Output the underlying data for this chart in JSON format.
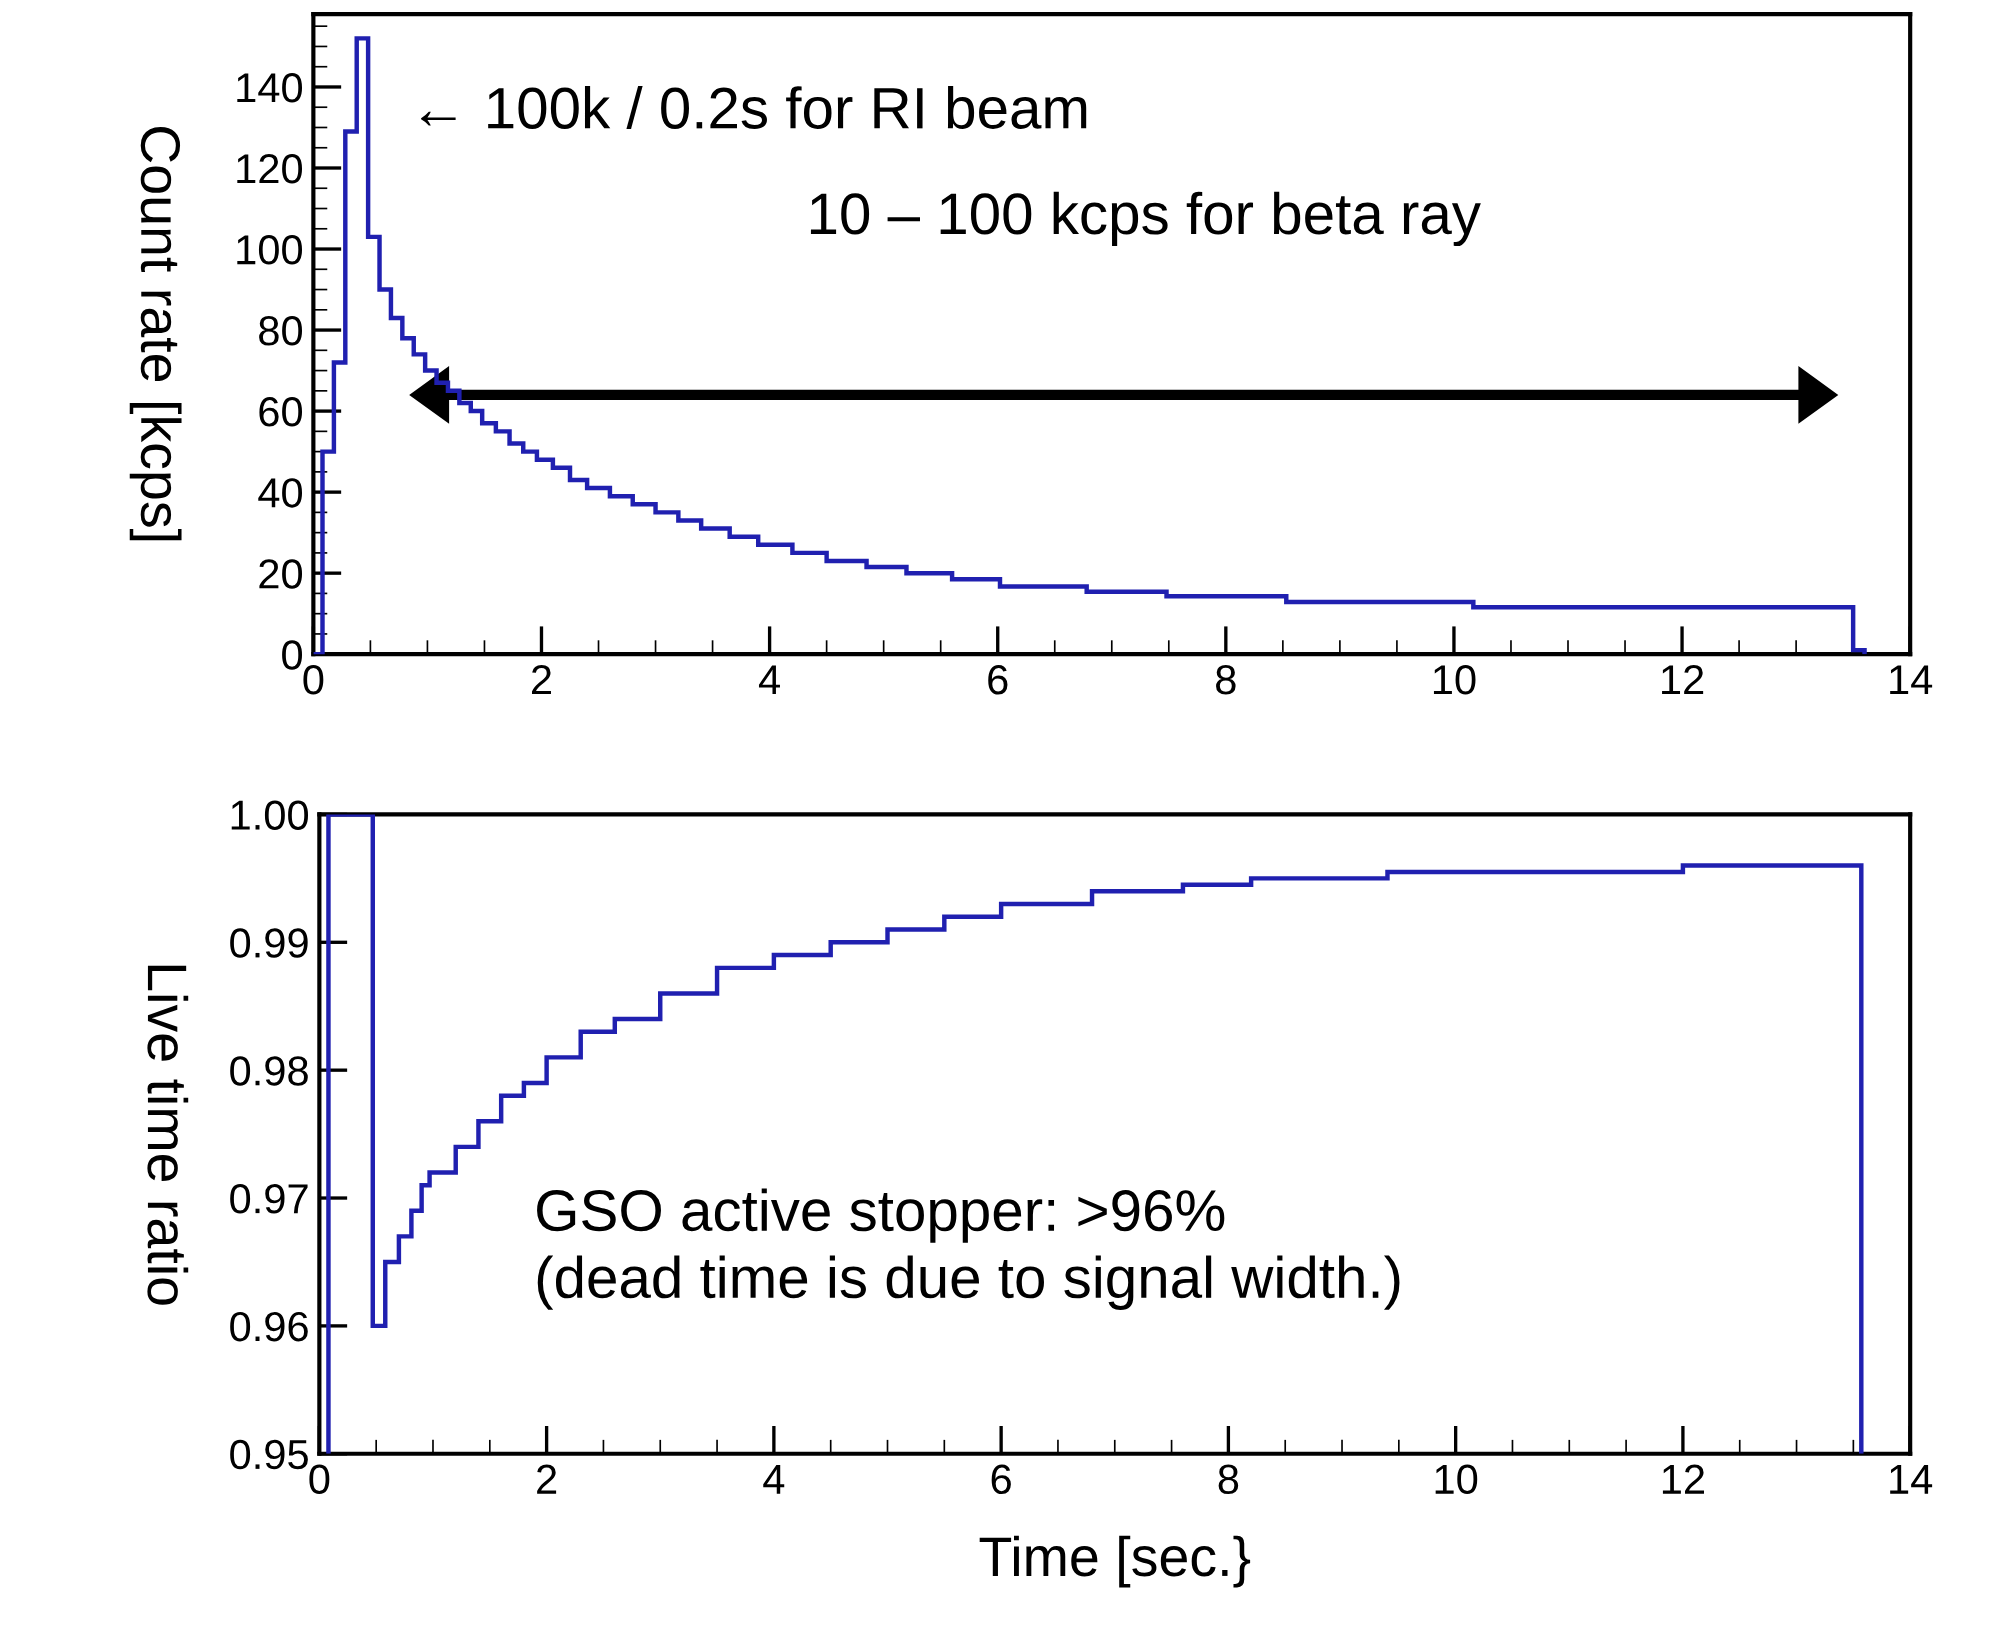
{
  "chart_data": [
    {
      "type": "histogram",
      "ylabel": "Count rate [kcps]",
      "color": "#2020b0",
      "bins": [
        0,
        0.08,
        0.18,
        0.28,
        0.38,
        0.48,
        0.58,
        0.68,
        0.78,
        0.88,
        0.98,
        1.08,
        1.18,
        1.28,
        1.38,
        1.48,
        1.6,
        1.72,
        1.84,
        1.96,
        2.1,
        2.25,
        2.4,
        2.6,
        2.8,
        3.0,
        3.2,
        3.4,
        3.65,
        3.9,
        4.2,
        4.5,
        4.85,
        5.2,
        5.6,
        6.02,
        6.78,
        7.48,
        8.53,
        10.17,
        13.5,
        13.6
      ],
      "values": [
        0,
        50,
        72,
        129,
        152,
        103,
        90,
        83,
        78,
        74,
        70,
        67,
        65,
        62,
        60,
        57,
        55,
        52,
        50,
        48,
        46,
        43,
        41,
        39,
        37,
        35,
        33,
        31,
        29,
        27,
        25,
        23,
        21.5,
        20,
        18.5,
        16.7,
        15.4,
        14.3,
        12.9,
        11.6,
        1
      ],
      "xlim": [
        0,
        14
      ],
      "ylim": [
        0,
        158
      ],
      "xticks": [
        0,
        2,
        4,
        6,
        8,
        10,
        12,
        14
      ],
      "yticks": [
        0,
        20,
        40,
        60,
        80,
        100,
        120,
        140
      ],
      "annotations": [
        "← 100k / 0.2s for RI beam",
        "10 – 100 kcps for beta ray"
      ]
    },
    {
      "type": "histogram",
      "xlabel": "Time [sec.}",
      "ylabel": "Live time ratio",
      "color": "#2020b0",
      "bins": [
        0.08,
        0.47,
        0.58,
        0.7,
        0.81,
        0.9,
        0.97,
        1.2,
        1.4,
        1.6,
        1.8,
        2.0,
        2.3,
        2.6,
        3.0,
        3.5,
        4.0,
        4.5,
        5.0,
        5.5,
        6.0,
        6.8,
        7.6,
        8.2,
        9.4,
        12.0,
        13.57
      ],
      "values": [
        1.0,
        0.96,
        0.965,
        0.967,
        0.969,
        0.971,
        0.972,
        0.974,
        0.976,
        0.978,
        0.979,
        0.981,
        0.983,
        0.984,
        0.986,
        0.988,
        0.989,
        0.99,
        0.991,
        0.992,
        0.993,
        0.994,
        0.9945,
        0.995,
        0.9955,
        0.996
      ],
      "xlim": [
        0,
        14
      ],
      "ylim": [
        0.95,
        1.0
      ],
      "xticks": [
        0,
        2,
        4,
        6,
        8,
        10,
        12,
        14
      ],
      "yticks": [
        {
          "value": 0.95,
          "label": "0.95"
        },
        {
          "value": 0.96,
          "label": "0.96"
        },
        {
          "value": 0.97,
          "label": "0.97"
        },
        {
          "value": 0.98,
          "label": "0.98"
        },
        {
          "value": 0.99,
          "label": "0.99"
        },
        {
          "value": 1.0,
          "label": "1.00"
        }
      ],
      "annotations": [
        "GSO active stopper: >96%\n(dead time is due to signal width.)"
      ]
    }
  ]
}
